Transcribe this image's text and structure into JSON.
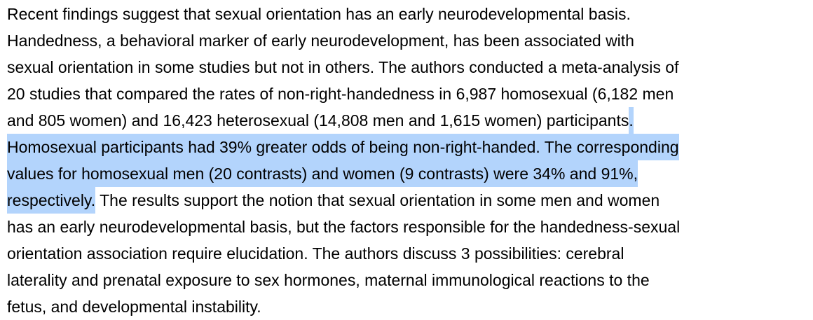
{
  "document": {
    "highlight_color": "#b3d4fc",
    "lines": [
      [
        {
          "text": "Recent findings suggest that sexual orientation has an early neurodevelopmental basis.",
          "highlight": false
        }
      ],
      [
        {
          "text": "Handedness, a behavioral marker of early neurodevelopment, has been associated with",
          "highlight": false
        }
      ],
      [
        {
          "text": "sexual orientation in some studies but not in others. The authors conducted a meta-analysis of",
          "highlight": false
        }
      ],
      [
        {
          "text": "20 studies that compared the rates of non-right-handedness in 6,987 homosexual (6,182 men",
          "highlight": false
        }
      ],
      [
        {
          "text": "and 805 women) and 16,423 heterosexual (14,808 men and 1,615 women) participants",
          "highlight": false
        },
        {
          "text": ".",
          "highlight": true
        }
      ],
      [
        {
          "text": "Homosexual participants had 39% greater odds of being non-right-handed. The corresponding",
          "highlight": true
        }
      ],
      [
        {
          "text": "values for homosexual men (20 contrasts) and women (9 contrasts) were 34% and 91%,",
          "highlight": true
        }
      ],
      [
        {
          "text": "respectively.",
          "highlight": true
        },
        {
          "text": " The results support the notion that sexual orientation in some men and women",
          "highlight": false
        }
      ],
      [
        {
          "text": "has an early neurodevelopmental basis, but the factors responsible for the handedness-sexual",
          "highlight": false
        }
      ],
      [
        {
          "text": "orientation association require elucidation. The authors discuss 3 possibilities: cerebral",
          "highlight": false
        }
      ],
      [
        {
          "text": "laterality and prenatal exposure to sex hormones, maternal immunological reactions to the",
          "highlight": false
        }
      ],
      [
        {
          "text": "fetus, and developmental instability.",
          "highlight": false
        }
      ]
    ]
  }
}
